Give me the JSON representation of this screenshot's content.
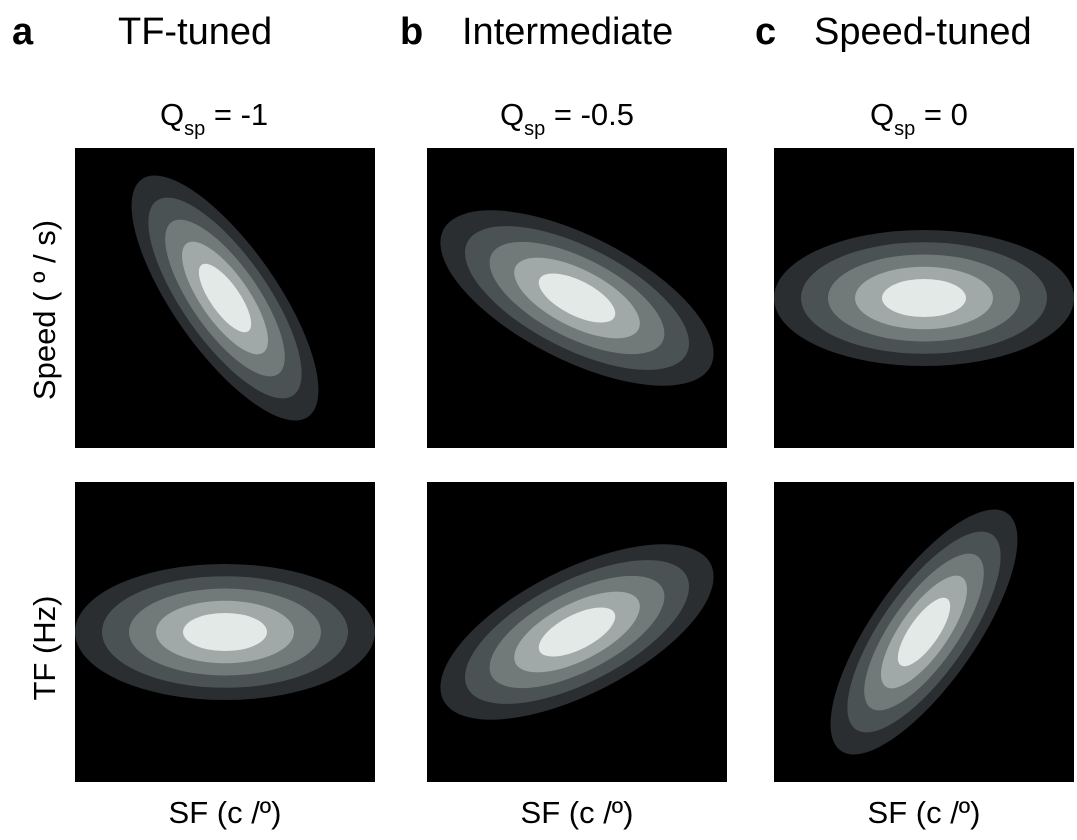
{
  "panels": [
    {
      "letter": "a",
      "title": "TF-tuned",
      "q_label": "Q",
      "q_sub": "sp",
      "q_value": " = -1",
      "x_axis_label": "SF (c /º)",
      "top_plot": {
        "name": "speed-sf-plot-a",
        "angle_deg": 55,
        "rx": 145,
        "ry": 52
      },
      "bottom_plot": {
        "name": "tf-sf-plot-a",
        "angle_deg": 0,
        "rx": 150,
        "ry": 68
      }
    },
    {
      "letter": "b",
      "title": "Intermediate",
      "q_label": "Q",
      "q_sub": "sp",
      "q_value": " = -0.5",
      "x_axis_label": "SF (c /º)",
      "top_plot": {
        "name": "speed-sf-plot-b",
        "angle_deg": 27,
        "rx": 150,
        "ry": 62
      },
      "bottom_plot": {
        "name": "tf-sf-plot-b",
        "angle_deg": -27,
        "rx": 150,
        "ry": 62
      }
    },
    {
      "letter": "c",
      "title": "Speed-tuned",
      "q_label": "Q",
      "q_sub": "sp",
      "q_value": " = 0",
      "x_axis_label": "SF (c /º)",
      "top_plot": {
        "name": "speed-sf-plot-c",
        "angle_deg": 0,
        "rx": 150,
        "ry": 68
      },
      "bottom_plot": {
        "name": "tf-sf-plot-c",
        "angle_deg": -55,
        "rx": 145,
        "ry": 52
      }
    }
  ],
  "y_axis_labels": {
    "top": "Speed ( º / s)",
    "bottom": "TF (Hz)"
  },
  "contour_colors": [
    "#2a2e30",
    "#4b5253",
    "#717a79",
    "#a0a9a7",
    "#e3e9e6"
  ],
  "background_color": "#000000"
}
